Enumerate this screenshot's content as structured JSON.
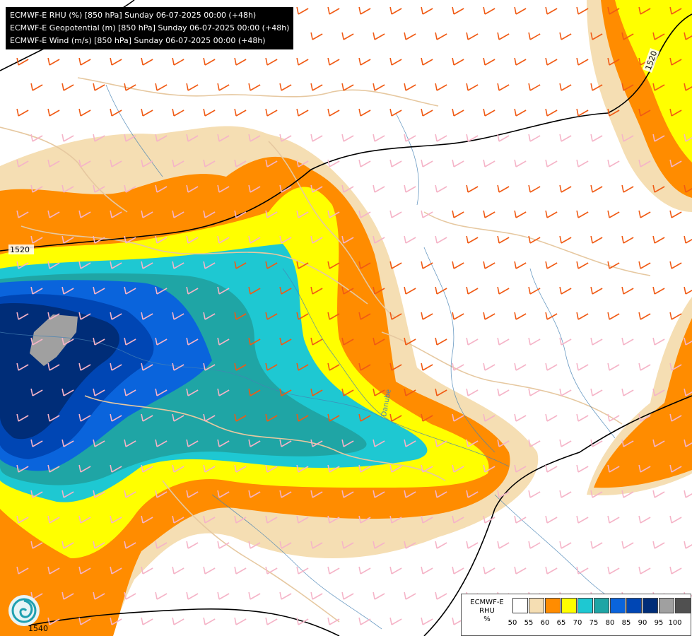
{
  "header": {
    "lines": [
      "ECMWF-E RHU (%) [850 hPa] Sunday 06-07-2025 00:00 (+48h)",
      "ECMWF-E Geopotential (m) [850 hPa] Sunday 06-07-2025 00:00 (+48h)",
      "ECMWF-E Wind (m/s) [850 hPa] Sunday 06-07-2025 00:00 (+48h)"
    ]
  },
  "contours": {
    "labels": [
      "1520",
      "1520",
      "1540"
    ]
  },
  "map_labels": {
    "river": "Danube"
  },
  "legend": {
    "title_line1": "ECMWF-E",
    "title_line2": "RHU",
    "unit": "%",
    "ticks": [
      "50",
      "55",
      "60",
      "65",
      "70",
      "75",
      "80",
      "85",
      "90",
      "95",
      "100"
    ],
    "colors": [
      "#ffffff",
      "#f5deb3",
      "#ff8c00",
      "#ffff00",
      "#1ec8d2",
      "#1fa5a5",
      "#0a64dc",
      "#0046b4",
      "#002d78",
      "#a0a0a0",
      "#505050"
    ]
  },
  "colors": {
    "wind_barb_strong": "#f05a14",
    "wind_barb_weak": "#f5b4c8",
    "borders": "#e6c8a0",
    "rivers": "#4682b4"
  },
  "icons": {
    "logo": "ecmwf-swirl-logo"
  }
}
